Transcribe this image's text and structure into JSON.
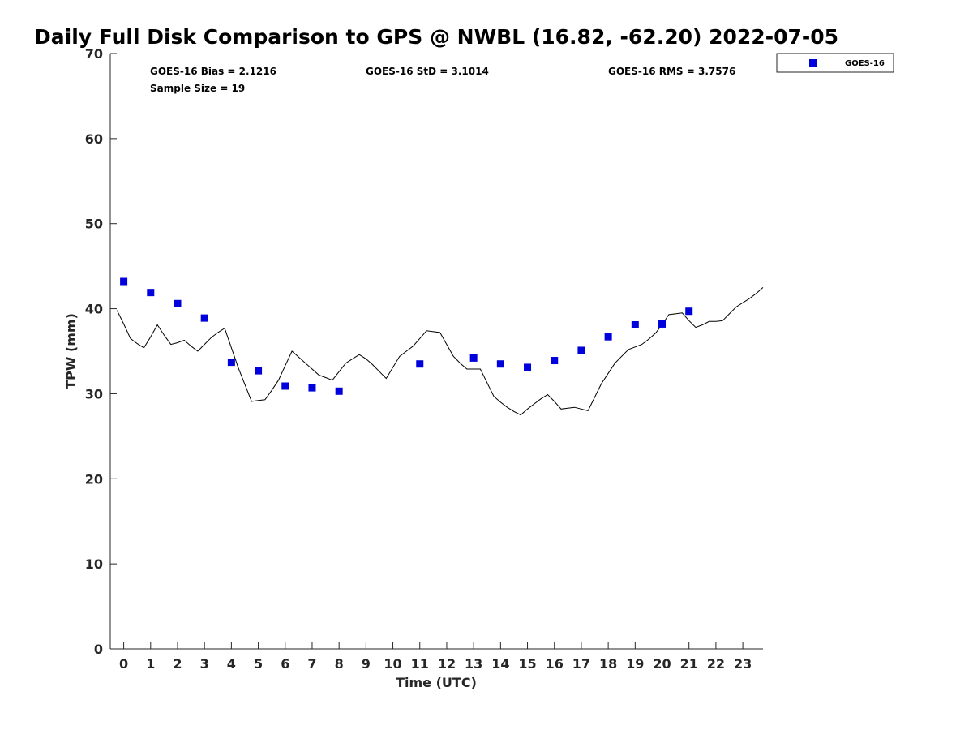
{
  "chart_data": {
    "type": "scatter",
    "title": "Daily Full Disk Comparison to GPS @ NWBL (16.82, -62.20) 2022-07-05",
    "xlabel": "Time (UTC)",
    "ylabel": "TPW (mm)",
    "xlim": [
      -0.5,
      23.75
    ],
    "ylim": [
      0,
      70
    ],
    "x_ticks": [
      0,
      1,
      2,
      3,
      4,
      5,
      6,
      7,
      8,
      9,
      10,
      11,
      12,
      13,
      14,
      15,
      16,
      17,
      18,
      19,
      20,
      21,
      22,
      23
    ],
    "y_ticks": [
      0,
      10,
      20,
      30,
      40,
      50,
      60,
      70
    ],
    "grid": false,
    "legend_position": "top-right",
    "annotations": {
      "bias": "GOES-16 Bias = 2.1216",
      "std": "GOES-16 StD = 3.1014",
      "rms": "GOES-16 RMS = 3.7576",
      "sample_size": "Sample Size = 19"
    },
    "series": [
      {
        "name": "GOES-16",
        "kind": "scatter",
        "color": "#0000dd",
        "marker": "square",
        "x": [
          0,
          1,
          2,
          3,
          4,
          5,
          6,
          7,
          8,
          11,
          13,
          14,
          15,
          16,
          17,
          18,
          19,
          20,
          21
        ],
        "y": [
          43.2,
          41.9,
          40.6,
          38.9,
          33.7,
          32.7,
          30.9,
          30.7,
          30.3,
          33.5,
          34.2,
          33.5,
          33.1,
          33.9,
          35.1,
          36.7,
          38.1,
          38.2,
          39.7
        ]
      },
      {
        "kind": "line",
        "color": "#000000",
        "x": [
          -0.25,
          0,
          0.25,
          0.5,
          0.75,
          1,
          1.25,
          1.5,
          1.75,
          2,
          2.25,
          2.5,
          2.75,
          3,
          3.25,
          3.5,
          3.75,
          4,
          4.25,
          4.5,
          4.75,
          5,
          5.25,
          5.5,
          5.75,
          6,
          6.25,
          6.5,
          6.75,
          7,
          7.25,
          7.5,
          7.75,
          8,
          8.25,
          8.5,
          8.75,
          9,
          9.25,
          9.5,
          9.75,
          10,
          10.25,
          10.5,
          10.75,
          11,
          11.25,
          11.5,
          11.75,
          12,
          12.25,
          12.5,
          12.75,
          13,
          13.25,
          13.5,
          13.75,
          14,
          14.25,
          14.5,
          14.75,
          15,
          15.25,
          15.5,
          15.75,
          16,
          16.25,
          16.5,
          16.75,
          17,
          17.25,
          17.5,
          17.75,
          18,
          18.25,
          18.5,
          18.75,
          19,
          19.25,
          19.5,
          19.75,
          20,
          20.25,
          20.5,
          20.75,
          21,
          21.25,
          21.5,
          21.75,
          22,
          22.25,
          22.5,
          22.75,
          23,
          23.25,
          23.5,
          23.75
        ],
        "y": [
          39.8,
          38.2,
          36.5,
          35.9,
          35.4,
          36.7,
          38.1,
          36.9,
          35.8,
          36.0,
          36.3,
          35.6,
          35.0,
          35.8,
          36.6,
          37.2,
          37.7,
          35.4,
          33.1,
          31.1,
          29.1,
          29.2,
          29.3,
          30.4,
          31.6,
          33.3,
          35.0,
          34.3,
          33.6,
          32.9,
          32.2,
          31.9,
          31.6,
          32.6,
          33.6,
          34.1,
          34.6,
          34.1,
          33.4,
          32.6,
          31.8,
          33.1,
          34.4,
          35.0,
          35.6,
          36.5,
          37.4,
          37.3,
          37.2,
          35.8,
          34.4,
          33.6,
          32.9,
          32.9,
          32.9,
          31.3,
          29.7,
          29.0,
          28.4,
          27.9,
          27.5,
          28.2,
          28.8,
          29.4,
          29.9,
          29.1,
          28.2,
          28.3,
          28.4,
          28.2,
          28.0,
          29.6,
          31.2,
          32.4,
          33.6,
          34.4,
          35.2,
          35.5,
          35.8,
          36.4,
          37.1,
          38.1,
          39.3,
          39.4,
          39.5,
          38.6,
          37.8,
          38.1,
          38.5,
          38.5,
          38.6,
          39.4,
          40.2,
          40.7,
          41.2,
          41.8,
          42.5
        ]
      }
    ]
  }
}
